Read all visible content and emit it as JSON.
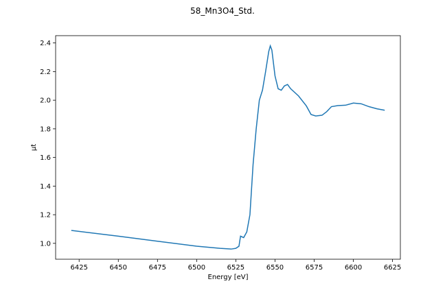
{
  "chart_data": {
    "type": "line",
    "title": "58_Mn3O4_Std.",
    "x_label": "Energy [eV]",
    "y_label": "μt",
    "x": [
      6420,
      6450,
      6475,
      6500,
      6515,
      6522,
      6525,
      6527,
      6528,
      6530,
      6532,
      6534,
      6536,
      6538,
      6540,
      6542,
      6544,
      6546,
      6547,
      6548,
      6550,
      6552,
      6554,
      6556,
      6558,
      6560,
      6565,
      6570,
      6573,
      6576,
      6580,
      6583,
      6586,
      6590,
      6595,
      6600,
      6605,
      6610,
      6615,
      6620
    ],
    "series": [
      {
        "name": "58_Mn3O4_Std.",
        "color": "#1f77b4",
        "values": [
          1.09,
          1.05,
          1.015,
          0.98,
          0.965,
          0.96,
          0.965,
          0.98,
          1.05,
          1.04,
          1.08,
          1.2,
          1.55,
          1.8,
          2.0,
          2.07,
          2.2,
          2.34,
          2.38,
          2.35,
          2.17,
          2.08,
          2.07,
          2.1,
          2.11,
          2.08,
          2.03,
          1.96,
          1.9,
          1.89,
          1.895,
          1.92,
          1.955,
          1.962,
          1.965,
          1.98,
          1.975,
          1.955,
          1.94,
          1.93
        ]
      }
    ],
    "xlim": [
      6410,
      6630
    ],
    "ylim": [
      0.889,
      2.451
    ],
    "xticks": [
      6425,
      6450,
      6475,
      6500,
      6525,
      6550,
      6575,
      6600,
      6625
    ],
    "yticks": [
      {
        "value": 1.0,
        "label": "1.0"
      },
      1.2,
      1.4,
      1.6,
      1.8,
      {
        "value": 2.0,
        "label": "2.0"
      },
      2.2,
      2.4
    ]
  }
}
